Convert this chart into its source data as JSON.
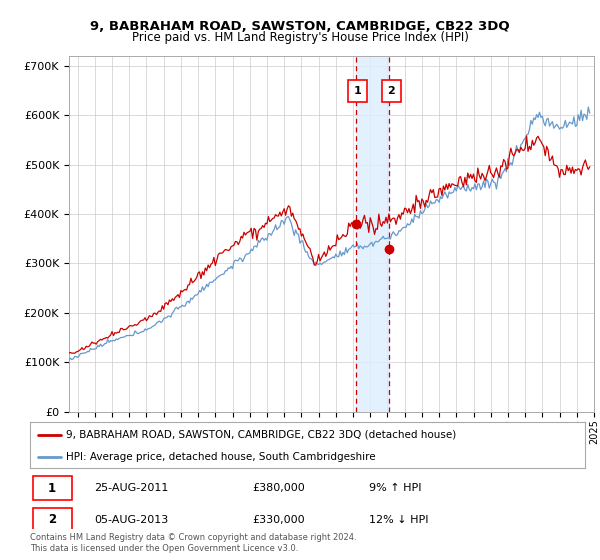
{
  "title": "9, BABRAHAM ROAD, SAWSTON, CAMBRIDGE, CB22 3DQ",
  "subtitle": "Price paid vs. HM Land Registry's House Price Index (HPI)",
  "legend_line1": "9, BABRAHAM ROAD, SAWSTON, CAMBRIDGE, CB22 3DQ (detached house)",
  "legend_line2": "HPI: Average price, detached house, South Cambridgeshire",
  "sale1_label": "1",
  "sale1_date": "25-AUG-2011",
  "sale1_price": "£380,000",
  "sale1_hpi": "9% ↑ HPI",
  "sale2_label": "2",
  "sale2_date": "05-AUG-2013",
  "sale2_price": "£330,000",
  "sale2_hpi": "12% ↓ HPI",
  "copyright": "Contains HM Land Registry data © Crown copyright and database right 2024.\nThis data is licensed under the Open Government Licence v3.0.",
  "price_color": "#cc0000",
  "hpi_color": "#6699cc",
  "shade_color": "#ddeeff",
  "marker1_x": 2011.65,
  "marker1_y": 380000,
  "marker2_x": 2013.59,
  "marker2_y": 330000,
  "ylim": [
    0,
    720000
  ],
  "xlim_start": 1995.0,
  "xlim_end": 2025.3,
  "ylabel_ticks": [
    0,
    100000,
    200000,
    300000,
    400000,
    500000,
    600000,
    700000
  ],
  "ylabel_labels": [
    "£0",
    "£100K",
    "£200K",
    "£300K",
    "£400K",
    "£500K",
    "£600K",
    "£700K"
  ]
}
